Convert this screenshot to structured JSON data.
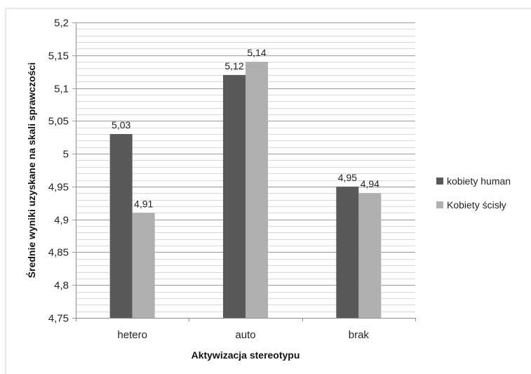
{
  "chart_data": {
    "type": "bar",
    "categories": [
      "hetero",
      "auto",
      "brak"
    ],
    "series": [
      {
        "name": "kobiety human",
        "values": [
          5.03,
          5.12,
          4.95
        ],
        "color": "#595959"
      },
      {
        "name": "Kobiety ścisły",
        "values": [
          4.91,
          5.14,
          4.94
        ],
        "color": "#b0b0b0"
      }
    ],
    "data_labels": [
      [
        "5,03",
        "5,12",
        "4,95"
      ],
      [
        "4,91",
        "5,14",
        "4,94"
      ]
    ],
    "ylim": [
      4.75,
      5.2
    ],
    "y_ticks": [
      {
        "value": 4.75,
        "label": "4,75"
      },
      {
        "value": 4.8,
        "label": "4,8"
      },
      {
        "value": 4.85,
        "label": "4,85"
      },
      {
        "value": 4.9,
        "label": "4,9"
      },
      {
        "value": 4.95,
        "label": "4,95"
      },
      {
        "value": 5.0,
        "label": "5"
      },
      {
        "value": 5.05,
        "label": "5,05"
      },
      {
        "value": 5.1,
        "label": "5,1"
      },
      {
        "value": 5.15,
        "label": "5,15"
      },
      {
        "value": 5.2,
        "label": "5,2"
      }
    ],
    "minor_grid_step": 0.01,
    "xlabel": "Aktywizacja stereotypu",
    "ylabel": "Średnie wyniki uzyskane na skali sprawczości",
    "legend_position": "right",
    "grid": true
  }
}
